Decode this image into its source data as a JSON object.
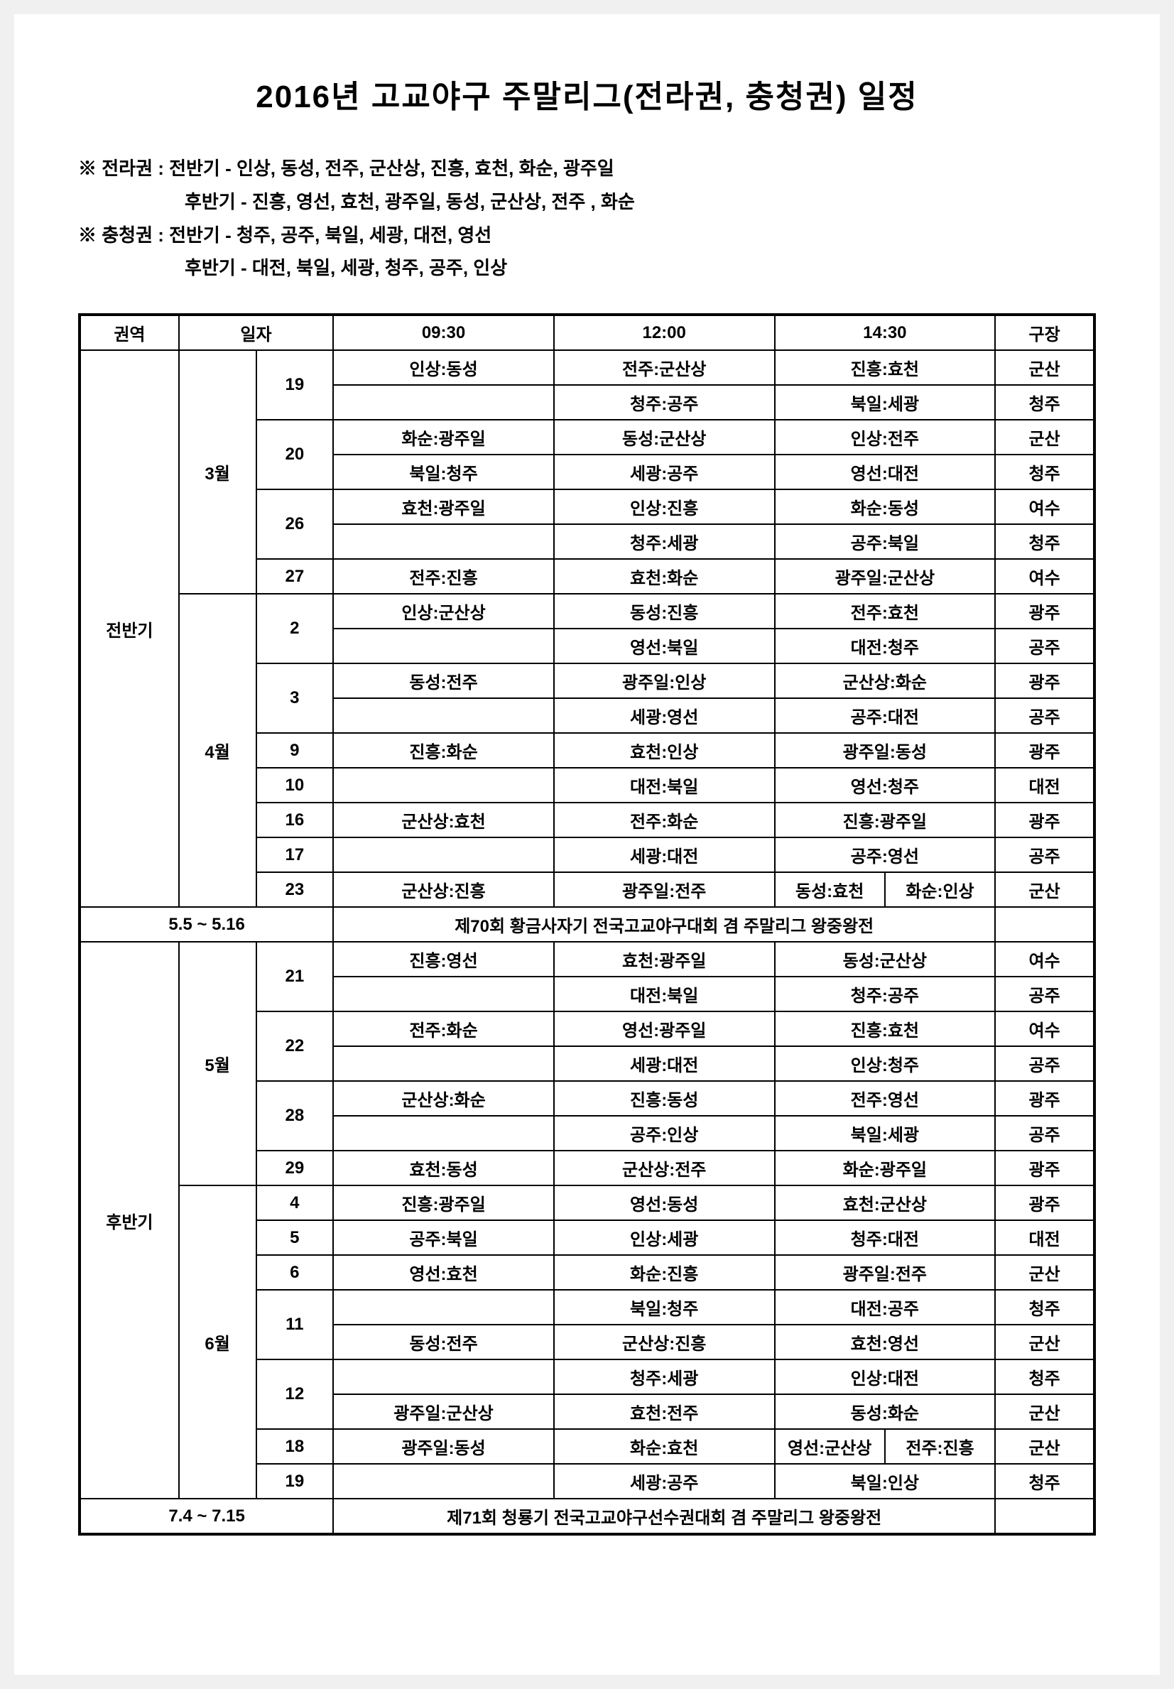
{
  "title": "2016년 고교야구 주말리그(전라권, 충청권) 일정",
  "notes": {
    "n1": "※ 전라권 : 전반기 - 인상, 동성, 전주, 군산상, 진흥, 효천, 화순, 광주일",
    "n2": "후반기 - 진흥, 영선, 효천, 광주일, 동성, 군산상, 전주 , 화순",
    "n3": "※ 충청권 : 전반기 - 청주, 공주, 북일, 세광, 대전, 영선",
    "n4": "후반기 - 대전, 북일, 세광, 청주, 공주, 인상"
  },
  "head": {
    "region": "권역",
    "date": "일자",
    "t1": "09:30",
    "t2": "12:00",
    "t3": "14:30",
    "venue": "구장"
  },
  "banner1_date": "5.5 ~ 5.16",
  "banner1_text": "제70회 황금사자기 전국고교야구대회 겸 주말리그 왕중왕전",
  "banner2_date": "7.4 ~ 7.15",
  "banner2_text": "제71회 청룡기 전국고교야구선수권대회 겸 주말리그 왕중왕전",
  "half1": "전반기",
  "half2": "후반기",
  "m3": "3월",
  "m4": "4월",
  "m5": "5월",
  "m6": "6월",
  "d": {
    "d19": "19",
    "d20": "20",
    "d26": "26",
    "d27": "27",
    "d2": "2",
    "d3": "3",
    "d9": "9",
    "d10": "10",
    "d16": "16",
    "d17": "17",
    "d23": "23",
    "d21": "21",
    "d22": "22",
    "d28": "28",
    "d29": "29",
    "d4": "4",
    "d5": "5",
    "d6": "6",
    "d11": "11",
    "d12": "12",
    "d18": "18",
    "d19b": "19"
  },
  "r": {
    "r1": {
      "a": "인상:동성",
      "b": "전주:군산상",
      "c": "진흥:효천",
      "v": "군산"
    },
    "r2": {
      "a": "",
      "b": "청주:공주",
      "c": "북일:세광",
      "v": "청주"
    },
    "r3": {
      "a": "화순:광주일",
      "b": "동성:군산상",
      "c": "인상:전주",
      "v": "군산"
    },
    "r4": {
      "a": "북일:청주",
      "b": "세광:공주",
      "c": "영선:대전",
      "v": "청주"
    },
    "r5": {
      "a": "효천:광주일",
      "b": "인상:진흥",
      "c": "화순:동성",
      "v": "여수"
    },
    "r6": {
      "a": "",
      "b": "청주:세광",
      "c": "공주:북일",
      "v": "청주"
    },
    "r7": {
      "a": "전주:진흥",
      "b": "효천:화순",
      "c": "광주일:군산상",
      "v": "여수"
    },
    "r8": {
      "a": "인상:군산상",
      "b": "동성:진흥",
      "c": "전주:효천",
      "v": "광주"
    },
    "r9": {
      "a": "",
      "b": "영선:북일",
      "c": "대전:청주",
      "v": "공주"
    },
    "r10": {
      "a": "동성:전주",
      "b": "광주일:인상",
      "c": "군산상:화순",
      "v": "광주"
    },
    "r11": {
      "a": "",
      "b": "세광:영선",
      "c": "공주:대전",
      "v": "공주"
    },
    "r12": {
      "a": "진흥:화순",
      "b": "효천:인상",
      "c": "광주일:동성",
      "v": "광주"
    },
    "r13": {
      "a": "",
      "b": "대전:북일",
      "c": "영선:청주",
      "v": "대전"
    },
    "r14": {
      "a": "군산상:효천",
      "b": "전주:화순",
      "c": "진흥:광주일",
      "v": "광주"
    },
    "r15": {
      "a": "",
      "b": "세광:대전",
      "c": "공주:영선",
      "v": "공주"
    },
    "r16": {
      "a": "군산상:진흥",
      "b": "광주일:전주",
      "c1": "동성:효천",
      "c2": "화순:인상",
      "v": "군산"
    },
    "r17": {
      "a": "진흥:영선",
      "b": "효천:광주일",
      "c": "동성:군산상",
      "v": "여수"
    },
    "r18": {
      "a": "",
      "b": "대전:북일",
      "c": "청주:공주",
      "v": "공주"
    },
    "r19": {
      "a": "전주:화순",
      "b": "영선:광주일",
      "c": "진흥:효천",
      "v": "여수"
    },
    "r20": {
      "a": "",
      "b": "세광:대전",
      "c": "인상:청주",
      "v": "공주"
    },
    "r21": {
      "a": "군산상:화순",
      "b": "진흥:동성",
      "c": "전주:영선",
      "v": "광주"
    },
    "r22": {
      "a": "",
      "b": "공주:인상",
      "c": "북일:세광",
      "v": "공주"
    },
    "r23": {
      "a": "효천:동성",
      "b": "군산상:전주",
      "c": "화순:광주일",
      "v": "광주"
    },
    "r24": {
      "a": "진흥:광주일",
      "b": "영선:동성",
      "c": "효천:군산상",
      "v": "광주"
    },
    "r25": {
      "a": "공주:북일",
      "b": "인상:세광",
      "c": "청주:대전",
      "v": "대전"
    },
    "r26": {
      "a": "영선:효천",
      "b": "화순:진흥",
      "c": "광주일:전주",
      "v": "군산"
    },
    "r27": {
      "a": "",
      "b": "북일:청주",
      "c": "대전:공주",
      "v": "청주"
    },
    "r28": {
      "a": "동성:전주",
      "b": "군산상:진흥",
      "c": "효천:영선",
      "v": "군산"
    },
    "r29": {
      "a": "",
      "b": "청주:세광",
      "c": "인상:대전",
      "v": "청주"
    },
    "r30": {
      "a": "광주일:군산상",
      "b": "효천:전주",
      "c": "동성:화순",
      "v": "군산"
    },
    "r31": {
      "a": "광주일:동성",
      "b": "화순:효천",
      "c1": "영선:군산상",
      "c2": "전주:진흥",
      "v": "군산"
    },
    "r32": {
      "a": "",
      "b": "세광:공주",
      "c": "북일:인상",
      "v": "청주"
    }
  }
}
